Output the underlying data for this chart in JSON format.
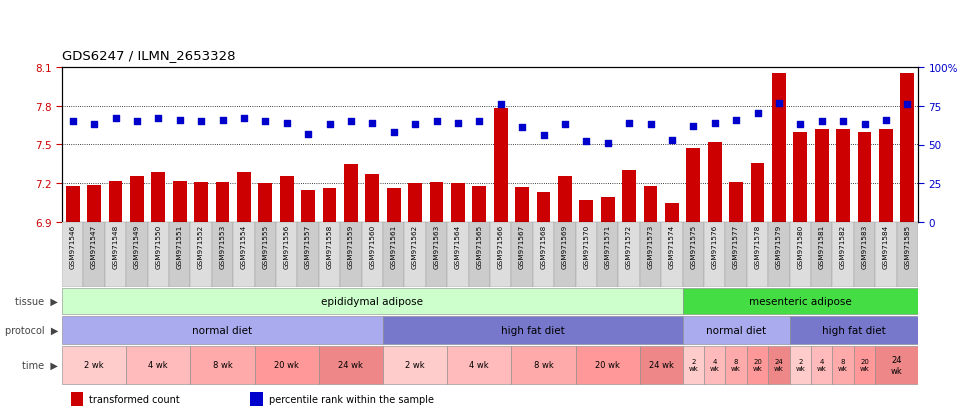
{
  "title": "GDS6247 / ILMN_2653328",
  "samples": [
    "GSM971546",
    "GSM971547",
    "GSM971548",
    "GSM971549",
    "GSM971550",
    "GSM971551",
    "GSM971552",
    "GSM971553",
    "GSM971554",
    "GSM971555",
    "GSM971556",
    "GSM971557",
    "GSM971558",
    "GSM971559",
    "GSM971560",
    "GSM971561",
    "GSM971562",
    "GSM971563",
    "GSM971564",
    "GSM971565",
    "GSM971566",
    "GSM971567",
    "GSM971568",
    "GSM971569",
    "GSM971570",
    "GSM971571",
    "GSM971572",
    "GSM971573",
    "GSM971574",
    "GSM971575",
    "GSM971576",
    "GSM971577",
    "GSM971578",
    "GSM971579",
    "GSM971580",
    "GSM971581",
    "GSM971582",
    "GSM971583",
    "GSM971584",
    "GSM971585"
  ],
  "bar_values": [
    7.18,
    7.19,
    7.22,
    7.26,
    7.29,
    7.22,
    7.21,
    7.21,
    7.29,
    7.2,
    7.26,
    7.15,
    7.16,
    7.35,
    7.27,
    7.16,
    7.2,
    7.21,
    7.2,
    7.18,
    7.78,
    7.17,
    7.13,
    7.26,
    7.07,
    7.09,
    7.3,
    7.18,
    7.05,
    7.47,
    7.52,
    7.21,
    7.36,
    8.05,
    7.6,
    7.62,
    7.62,
    7.6,
    7.62,
    8.05
  ],
  "scatter_values": [
    65,
    63,
    67,
    65,
    67,
    66,
    65,
    66,
    67,
    65,
    64,
    57,
    63,
    65,
    64,
    58,
    63,
    65,
    64,
    65,
    76,
    61,
    56,
    63,
    52,
    51,
    64,
    63,
    53,
    62,
    64,
    66,
    70,
    77,
    63,
    65,
    65,
    63,
    66,
    76
  ],
  "ylim_left": [
    6.9,
    8.1
  ],
  "ylim_right": [
    0,
    100
  ],
  "yticks_left": [
    6.9,
    7.2,
    7.5,
    7.8,
    8.1
  ],
  "yticks_right": [
    0,
    25,
    50,
    75,
    100
  ],
  "ytick_right_labels": [
    "0",
    "25",
    "50",
    "75",
    "100%"
  ],
  "bar_color": "#CC0000",
  "scatter_color": "#0000CC",
  "bg_color": "#FFFFFF",
  "tissue_blocks": [
    {
      "label": "epididymal adipose",
      "start": 0,
      "end": 29,
      "color": "#CCFFCC"
    },
    {
      "label": "mesenteric adipose",
      "start": 29,
      "end": 40,
      "color": "#44DD44"
    }
  ],
  "protocol_blocks": [
    {
      "label": "normal diet",
      "start": 0,
      "end": 15,
      "color": "#AAAAEE"
    },
    {
      "label": "high fat diet",
      "start": 15,
      "end": 29,
      "color": "#7777CC"
    },
    {
      "label": "normal diet",
      "start": 29,
      "end": 34,
      "color": "#AAAAEE"
    },
    {
      "label": "high fat diet",
      "start": 34,
      "end": 40,
      "color": "#7777CC"
    }
  ],
  "time_blocks": [
    {
      "label": "2 wk",
      "start": 0,
      "end": 3,
      "color": "#FFCCCC"
    },
    {
      "label": "4 wk",
      "start": 3,
      "end": 6,
      "color": "#FFBBBB"
    },
    {
      "label": "8 wk",
      "start": 6,
      "end": 9,
      "color": "#FFAAAA"
    },
    {
      "label": "20 wk",
      "start": 9,
      "end": 12,
      "color": "#FF9999"
    },
    {
      "label": "24 wk",
      "start": 12,
      "end": 15,
      "color": "#EE8888"
    },
    {
      "label": "2 wk",
      "start": 15,
      "end": 18,
      "color": "#FFCCCC"
    },
    {
      "label": "4 wk",
      "start": 18,
      "end": 21,
      "color": "#FFBBBB"
    },
    {
      "label": "8 wk",
      "start": 21,
      "end": 24,
      "color": "#FFAAAA"
    },
    {
      "label": "20 wk",
      "start": 24,
      "end": 27,
      "color": "#FF9999"
    },
    {
      "label": "24 wk",
      "start": 27,
      "end": 29,
      "color": "#EE8888"
    },
    {
      "label": "2\nwk",
      "start": 29,
      "end": 30,
      "color": "#FFCCCC"
    },
    {
      "label": "4\nwk",
      "start": 30,
      "end": 31,
      "color": "#FFBBBB"
    },
    {
      "label": "8\nwk",
      "start": 31,
      "end": 32,
      "color": "#FFAAAA"
    },
    {
      "label": "20\nwk",
      "start": 32,
      "end": 33,
      "color": "#FF9999"
    },
    {
      "label": "24\nwk",
      "start": 33,
      "end": 34,
      "color": "#EE8888"
    },
    {
      "label": "2\nwk",
      "start": 34,
      "end": 35,
      "color": "#FFCCCC"
    },
    {
      "label": "4\nwk",
      "start": 35,
      "end": 36,
      "color": "#FFBBBB"
    },
    {
      "label": "8\nwk",
      "start": 36,
      "end": 37,
      "color": "#FFAAAA"
    },
    {
      "label": "20\nwk",
      "start": 37,
      "end": 38,
      "color": "#FF9999"
    },
    {
      "label": "24\nwk",
      "start": 38,
      "end": 40,
      "color": "#EE8888"
    }
  ],
  "legend_items": [
    {
      "label": "transformed count",
      "color": "#CC0000"
    },
    {
      "label": "percentile rank within the sample",
      "color": "#0000CC"
    }
  ]
}
